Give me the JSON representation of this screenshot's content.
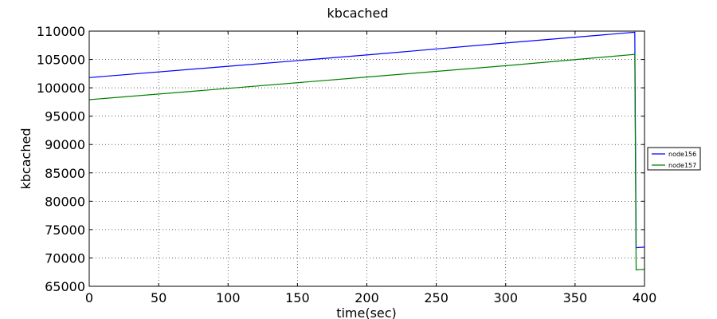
{
  "chart_data": {
    "type": "line",
    "title": "kbcached",
    "xlabel": "time(sec)",
    "ylabel": "kbcached",
    "xlim": [
      0,
      400
    ],
    "ylim": [
      65000,
      110000
    ],
    "xticks": [
      0,
      50,
      100,
      150,
      200,
      250,
      300,
      350,
      400
    ],
    "yticks": [
      65000,
      70000,
      75000,
      80000,
      85000,
      90000,
      95000,
      100000,
      105000,
      110000
    ],
    "grid": true,
    "legend_position": "right, outside plot",
    "series": [
      {
        "name": "node156",
        "color": "#0000ff",
        "x": [
          0,
          100,
          200,
          300,
          393,
          394,
          400
        ],
        "y": [
          101800,
          103800,
          105800,
          107900,
          109800,
          71800,
          71900
        ]
      },
      {
        "name": "node157",
        "color": "#008000",
        "x": [
          0,
          100,
          200,
          300,
          393,
          394,
          400
        ],
        "y": [
          97900,
          99900,
          101900,
          103900,
          105900,
          67900,
          68000
        ]
      }
    ]
  }
}
